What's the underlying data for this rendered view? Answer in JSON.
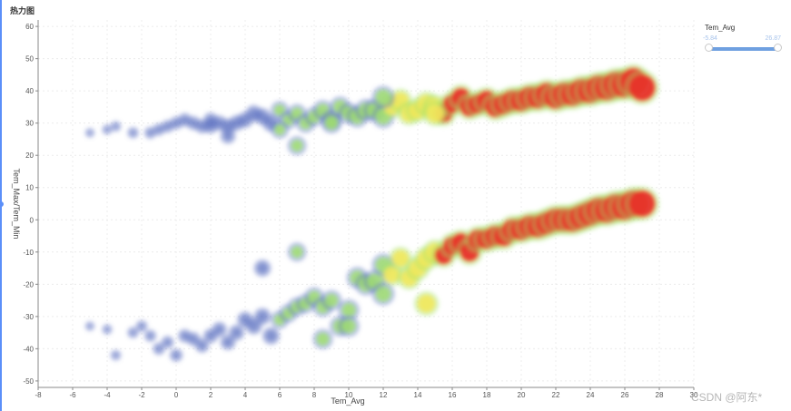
{
  "header": {
    "title": "热力图"
  },
  "watermark": "CSDN @阿东*",
  "visual_map": {
    "label": "Tem_Avg",
    "min": "-5.84",
    "max": "26.87",
    "colors": [
      "#5a6fc0",
      "#a3e36a",
      "#f2e85c",
      "#e8322a"
    ]
  },
  "chart_data": {
    "type": "heatmap",
    "title": "热力图",
    "xlabel": "Tem_Avg",
    "ylabel": "Tem_Max/Tem_Min",
    "xlim": [
      -8,
      30
    ],
    "ylim": [
      -52,
      62
    ],
    "x_ticks": [
      -8,
      -6,
      -4,
      -2,
      0,
      2,
      4,
      6,
      8,
      10,
      12,
      14,
      16,
      18,
      20,
      22,
      24,
      26,
      28,
      30
    ],
    "y_ticks": [
      60,
      50,
      40,
      30,
      20,
      10,
      0,
      -10,
      -20,
      -30,
      -40,
      -50
    ],
    "grid": true,
    "series": [
      {
        "name": "Tem_Max",
        "points": [
          [
            -5,
            27
          ],
          [
            -4,
            28
          ],
          [
            -3.5,
            29
          ],
          [
            -2.5,
            27
          ],
          [
            -1.5,
            27
          ],
          [
            -1,
            28
          ],
          [
            -0.5,
            29
          ],
          [
            0,
            30
          ],
          [
            0.5,
            31
          ],
          [
            1,
            30
          ],
          [
            1.5,
            29
          ],
          [
            2,
            29
          ],
          [
            2,
            31
          ],
          [
            2.5,
            30
          ],
          [
            3,
            29
          ],
          [
            3.5,
            30
          ],
          [
            4,
            31
          ],
          [
            4.5,
            33
          ],
          [
            5,
            32
          ],
          [
            5.5,
            30
          ],
          [
            6,
            34
          ],
          [
            6.5,
            31
          ],
          [
            7,
            33
          ],
          [
            7.5,
            30
          ],
          [
            8,
            32
          ],
          [
            8.5,
            34
          ],
          [
            9,
            31
          ],
          [
            9.5,
            35
          ],
          [
            10,
            33
          ],
          [
            10.5,
            32
          ],
          [
            11,
            34
          ],
          [
            11.5,
            34
          ],
          [
            12,
            32
          ],
          [
            12.5,
            35
          ],
          [
            13,
            37
          ],
          [
            13.5,
            33
          ],
          [
            14,
            34
          ],
          [
            14.5,
            36
          ],
          [
            15,
            35
          ],
          [
            15.5,
            33
          ],
          [
            16,
            36
          ],
          [
            16.5,
            38
          ],
          [
            17,
            35
          ],
          [
            17.5,
            36
          ],
          [
            18,
            37
          ],
          [
            18.5,
            35
          ],
          [
            19,
            36
          ],
          [
            19.5,
            37
          ],
          [
            20,
            37
          ],
          [
            20.5,
            38
          ],
          [
            21,
            38
          ],
          [
            21.5,
            39
          ],
          [
            22,
            38
          ],
          [
            22.5,
            39
          ],
          [
            23,
            39
          ],
          [
            23.5,
            40
          ],
          [
            24,
            40
          ],
          [
            24.5,
            41
          ],
          [
            25,
            41
          ],
          [
            25.5,
            42
          ],
          [
            26,
            42
          ],
          [
            26.5,
            43
          ],
          [
            27,
            41
          ],
          [
            7,
            23
          ],
          [
            6,
            28
          ],
          [
            3,
            26
          ],
          [
            9,
            30
          ],
          [
            12,
            38
          ],
          [
            15,
            33
          ]
        ]
      },
      {
        "name": "Tem_Min",
        "points": [
          [
            -5,
            -33
          ],
          [
            -4,
            -34
          ],
          [
            -3.5,
            -42
          ],
          [
            -2.5,
            -35
          ],
          [
            -2,
            -33
          ],
          [
            -1.5,
            -36
          ],
          [
            -1,
            -40
          ],
          [
            -0.5,
            -38
          ],
          [
            0,
            -42
          ],
          [
            0.5,
            -36
          ],
          [
            1,
            -37
          ],
          [
            1.5,
            -39
          ],
          [
            2,
            -36
          ],
          [
            2.5,
            -34
          ],
          [
            3,
            -38
          ],
          [
            3.5,
            -35
          ],
          [
            4,
            -31
          ],
          [
            4.5,
            -33
          ],
          [
            5,
            -30
          ],
          [
            5.5,
            -36
          ],
          [
            6,
            -31
          ],
          [
            6.5,
            -29
          ],
          [
            7,
            -27
          ],
          [
            7.5,
            -26
          ],
          [
            8,
            -24
          ],
          [
            8.5,
            -27
          ],
          [
            9,
            -25
          ],
          [
            9.5,
            -33
          ],
          [
            10,
            -28
          ],
          [
            10.5,
            -18
          ],
          [
            11,
            -20
          ],
          [
            11.5,
            -19
          ],
          [
            12,
            -14
          ],
          [
            12.5,
            -17
          ],
          [
            13,
            -12
          ],
          [
            13.5,
            -18
          ],
          [
            14,
            -15
          ],
          [
            14.5,
            -12
          ],
          [
            15,
            -10
          ],
          [
            15.5,
            -11
          ],
          [
            16,
            -8
          ],
          [
            16.5,
            -7
          ],
          [
            17,
            -10
          ],
          [
            17.5,
            -6
          ],
          [
            18,
            -6
          ],
          [
            18.5,
            -5
          ],
          [
            19,
            -5
          ],
          [
            19.5,
            -3
          ],
          [
            20,
            -3
          ],
          [
            20.5,
            -2
          ],
          [
            21,
            -2
          ],
          [
            21.5,
            -1
          ],
          [
            22,
            0
          ],
          [
            22.5,
            0
          ],
          [
            23,
            0
          ],
          [
            23.5,
            1
          ],
          [
            24,
            2
          ],
          [
            24.5,
            3
          ],
          [
            25,
            3
          ],
          [
            25.5,
            4
          ],
          [
            26,
            4
          ],
          [
            26.5,
            5
          ],
          [
            27,
            5
          ],
          [
            7,
            -10
          ],
          [
            5,
            -15
          ],
          [
            12,
            -23
          ],
          [
            14.5,
            -26
          ],
          [
            8.5,
            -37
          ],
          [
            10,
            -33
          ]
        ]
      }
    ]
  }
}
